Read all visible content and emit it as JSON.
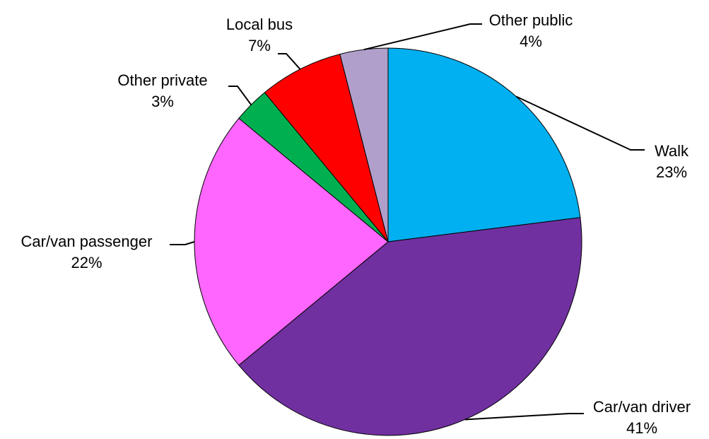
{
  "chart_data": {
    "type": "pie",
    "title": "",
    "start_angle_deg": 0,
    "direction": "clockwise",
    "slices": [
      {
        "label": "Walk",
        "value": 23,
        "value_label": "23%",
        "color": "#00B0F0"
      },
      {
        "label": "Car/van driver",
        "value": 41,
        "value_label": "41%",
        "color": "#7030A0"
      },
      {
        "label": "Car/van passenger",
        "value": 22,
        "value_label": "22%",
        "color": "#FF66FF"
      },
      {
        "label": "Other private",
        "value": 3,
        "value_label": "3%",
        "color": "#00B050"
      },
      {
        "label": "Local bus",
        "value": 7,
        "value_label": "7%",
        "color": "#FF0000"
      },
      {
        "label": "Other public",
        "value": 4,
        "value_label": "4%",
        "color": "#B09FCA"
      }
    ]
  }
}
